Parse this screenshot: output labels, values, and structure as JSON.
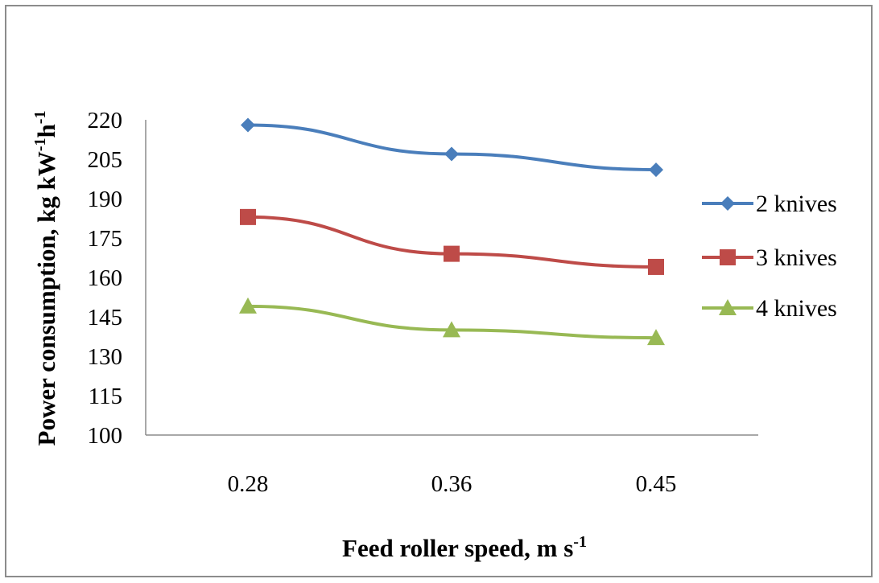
{
  "chart_data": {
    "type": "line",
    "categories": [
      "0.28",
      "0.36",
      "0.45"
    ],
    "ylim": [
      100,
      220
    ],
    "yticks": [
      "100",
      "115",
      "130",
      "145",
      "160",
      "175",
      "190",
      "205",
      "220"
    ],
    "grid": false,
    "legend_position": "right",
    "xlabel": {
      "main": "Feed roller speed, m s",
      "sup": "-1"
    },
    "ylabel": {
      "main": "Power consumption, kg  kW",
      "sup1": "-1",
      "mid": "h",
      "sup2": "-1"
    },
    "series": [
      {
        "name": "2  knives",
        "color": "#4a7ebb",
        "marker": "diamond",
        "values": [
          218,
          207,
          201
        ]
      },
      {
        "name": "3  knives",
        "color": "#be4b48",
        "marker": "square",
        "values": [
          183,
          169,
          164
        ]
      },
      {
        "name": "4  knives",
        "color": "#98b954",
        "marker": "triangle",
        "values": [
          149,
          140,
          137
        ]
      }
    ]
  }
}
